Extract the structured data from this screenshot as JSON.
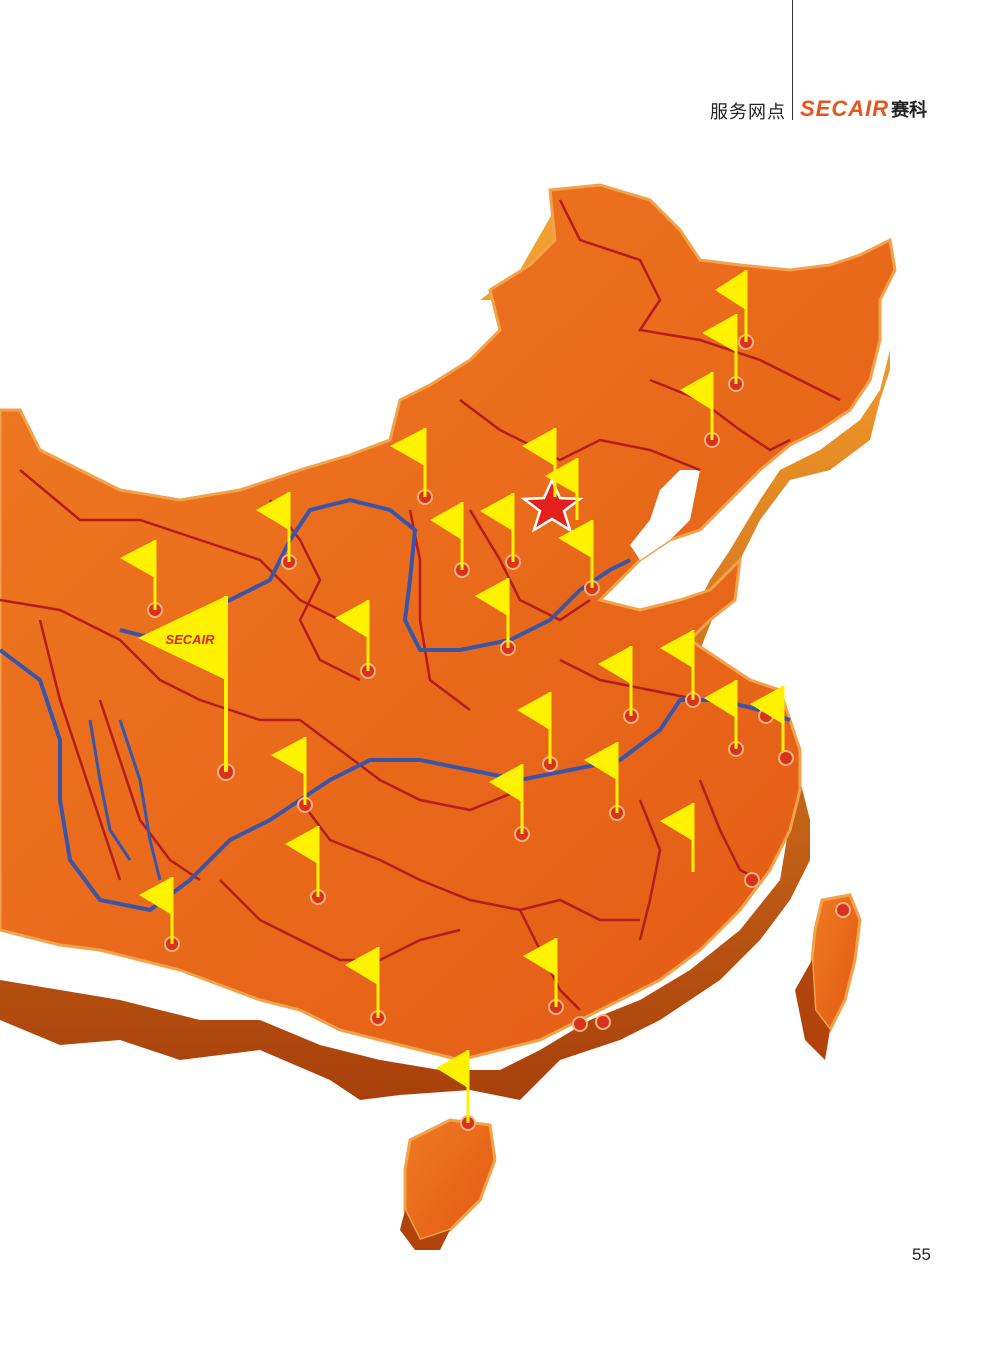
{
  "header": {
    "section_title": "服务网点",
    "brand_name": "SECAIR",
    "brand_cn": "赛科"
  },
  "map": {
    "region": "China",
    "land_color": "#e8651a",
    "land_shadow": "#b94a0c",
    "border_color": "#b31d1d",
    "river_color": "#3a55a8",
    "flag_color": "#fff200",
    "capital_star_color": "#e3201b",
    "hq_flag_label": "SECAIR"
  },
  "page": {
    "number": "55"
  }
}
